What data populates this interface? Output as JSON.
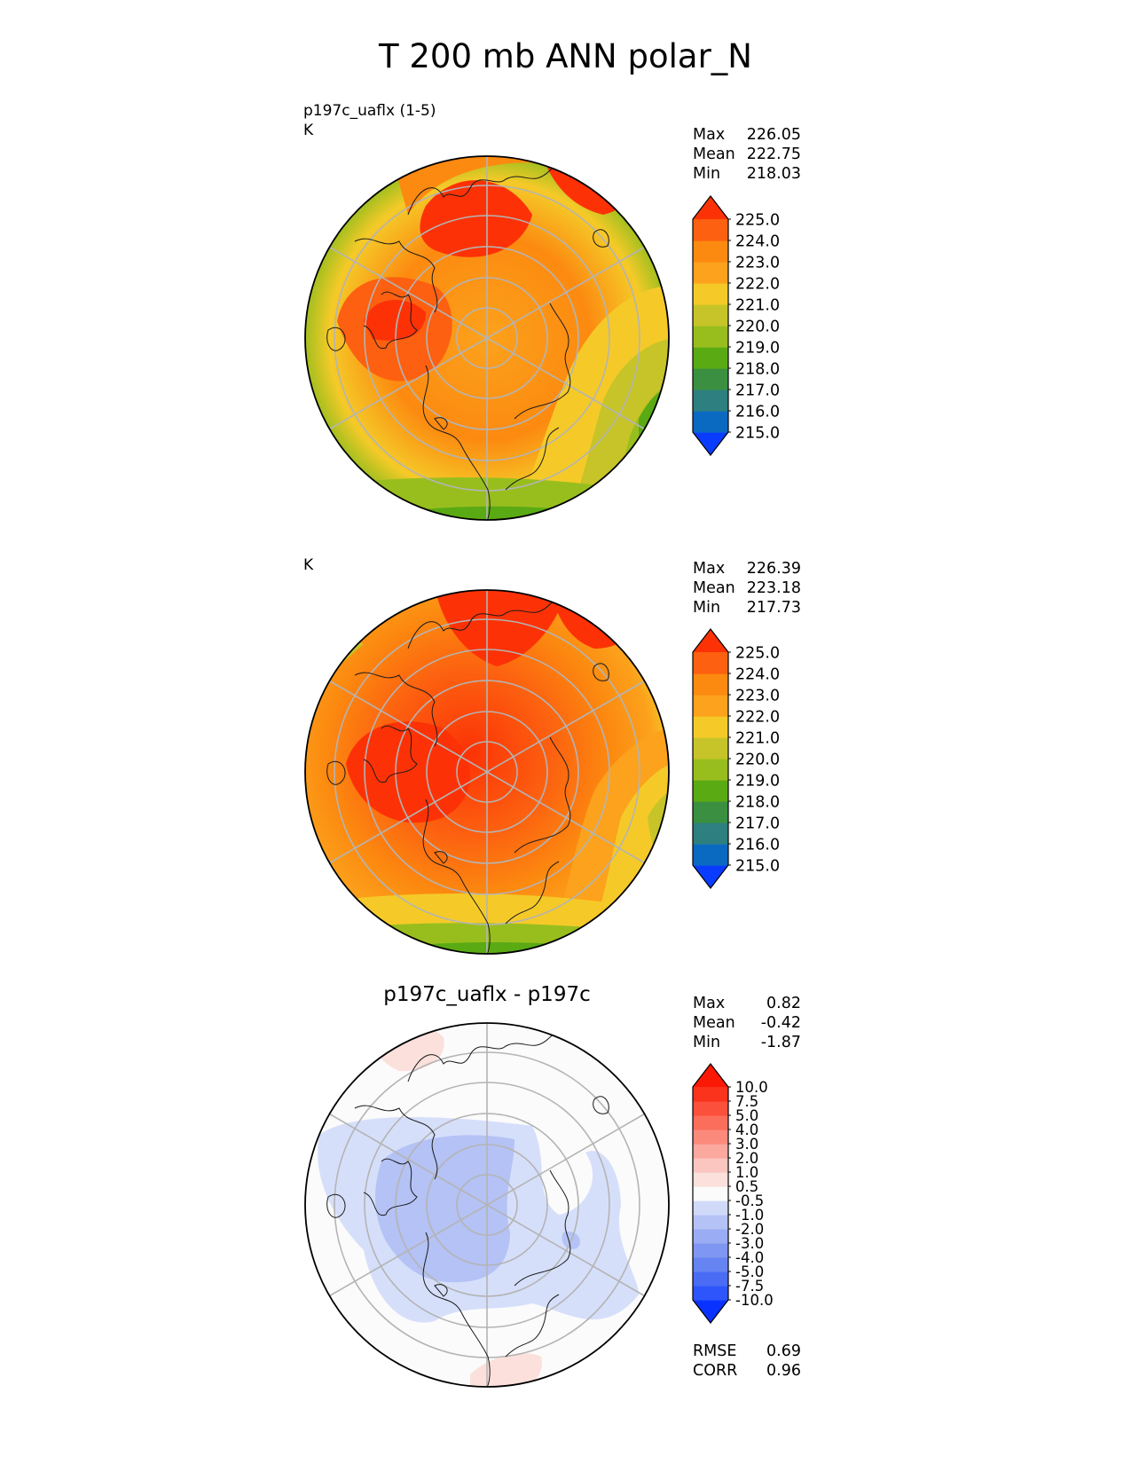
{
  "title": "T 200 mb ANN polar_N",
  "panels": [
    {
      "id": "test",
      "name_label": "p197c_uaflx (1-5)",
      "units_label": "K",
      "stats": [
        {
          "key": "Max",
          "value": "226.05"
        },
        {
          "key": "Mean",
          "value": "222.75"
        },
        {
          "key": "Min",
          "value": "218.03"
        }
      ]
    },
    {
      "id": "reference",
      "name_label": "",
      "units_label": "K",
      "stats": [
        {
          "key": "Max",
          "value": "226.39"
        },
        {
          "key": "Mean",
          "value": "223.18"
        },
        {
          "key": "Min",
          "value": "217.73"
        }
      ]
    },
    {
      "id": "difference",
      "title": "p197c_uaflx - p197c",
      "stats": [
        {
          "key": "Max",
          "value": "0.82"
        },
        {
          "key": "Mean",
          "value": "-0.42"
        },
        {
          "key": "Min",
          "value": "-1.87"
        }
      ],
      "metrics": [
        {
          "key": "RMSE",
          "value": "0.69"
        },
        {
          "key": "CORR",
          "value": "0.96"
        }
      ]
    }
  ],
  "chart_data": [
    {
      "type": "heatmap",
      "projection": "north-polar-stereographic",
      "variable": "T 200 mb",
      "units": "K",
      "colorbar": {
        "ticks": [
          "225.0",
          "224.0",
          "223.0",
          "222.0",
          "221.0",
          "220.0",
          "219.0",
          "218.0",
          "217.0",
          "216.0",
          "215.0"
        ],
        "levels": [
          215,
          216,
          217,
          218,
          219,
          220,
          221,
          222,
          223,
          224,
          225
        ],
        "colors": [
          "#0a3cff",
          "#0a6ac2",
          "#2e8080",
          "#3a9040",
          "#5aaa14",
          "#98be1e",
          "#c6c428",
          "#f5ca28",
          "#fca21c",
          "#fc8a10",
          "#fc6010",
          "#fc3206"
        ],
        "extend": "both"
      },
      "stats": {
        "max": 226.05,
        "mean": 222.75,
        "min": 218.03
      }
    },
    {
      "type": "heatmap",
      "projection": "north-polar-stereographic",
      "variable": "T 200 mb",
      "units": "K",
      "colorbar": {
        "ticks": [
          "225.0",
          "224.0",
          "223.0",
          "222.0",
          "221.0",
          "220.0",
          "219.0",
          "218.0",
          "217.0",
          "216.0",
          "215.0"
        ],
        "levels": [
          215,
          216,
          217,
          218,
          219,
          220,
          221,
          222,
          223,
          224,
          225
        ],
        "colors": [
          "#0a3cff",
          "#0a6ac2",
          "#2e8080",
          "#3a9040",
          "#5aaa14",
          "#98be1e",
          "#c6c428",
          "#f5ca28",
          "#fca21c",
          "#fc8a10",
          "#fc6010",
          "#fc3206"
        ],
        "extend": "both"
      },
      "stats": {
        "max": 226.39,
        "mean": 223.18,
        "min": 217.73
      }
    },
    {
      "type": "heatmap",
      "projection": "north-polar-stereographic",
      "title": "p197c_uaflx - p197c",
      "colorbar": {
        "ticks": [
          "10.0",
          "7.5",
          "5.0",
          "4.0",
          "3.0",
          "2.0",
          "1.0",
          "0.5",
          "-0.5",
          "-1.0",
          "-2.0",
          "-3.0",
          "-4.0",
          "-5.0",
          "-7.5",
          "-10.0"
        ],
        "levels": [
          -10,
          -7.5,
          -5,
          -4,
          -3,
          -2,
          -1,
          -0.5,
          0.5,
          1,
          2,
          3,
          4,
          5,
          7.5,
          10
        ],
        "colors": [
          "#0a32ff",
          "#2e55fb",
          "#4a6cf5",
          "#6584f2",
          "#7f97f2",
          "#9aacf3",
          "#b4c2f5",
          "#d0daf8",
          "#fbfbfb",
          "#fbe0dc",
          "#fbc6c0",
          "#fba89e",
          "#fb8a7c",
          "#fb6e5c",
          "#fb503c",
          "#fb321c",
          "#fb1804"
        ],
        "extend": "both"
      },
      "stats": {
        "max": 0.82,
        "mean": -0.42,
        "min": -1.87
      },
      "metrics": {
        "rmse": 0.69,
        "corr": 0.96
      }
    }
  ],
  "colors": {
    "grid": "#b4b4b4",
    "coast": "#1a1a1a"
  }
}
